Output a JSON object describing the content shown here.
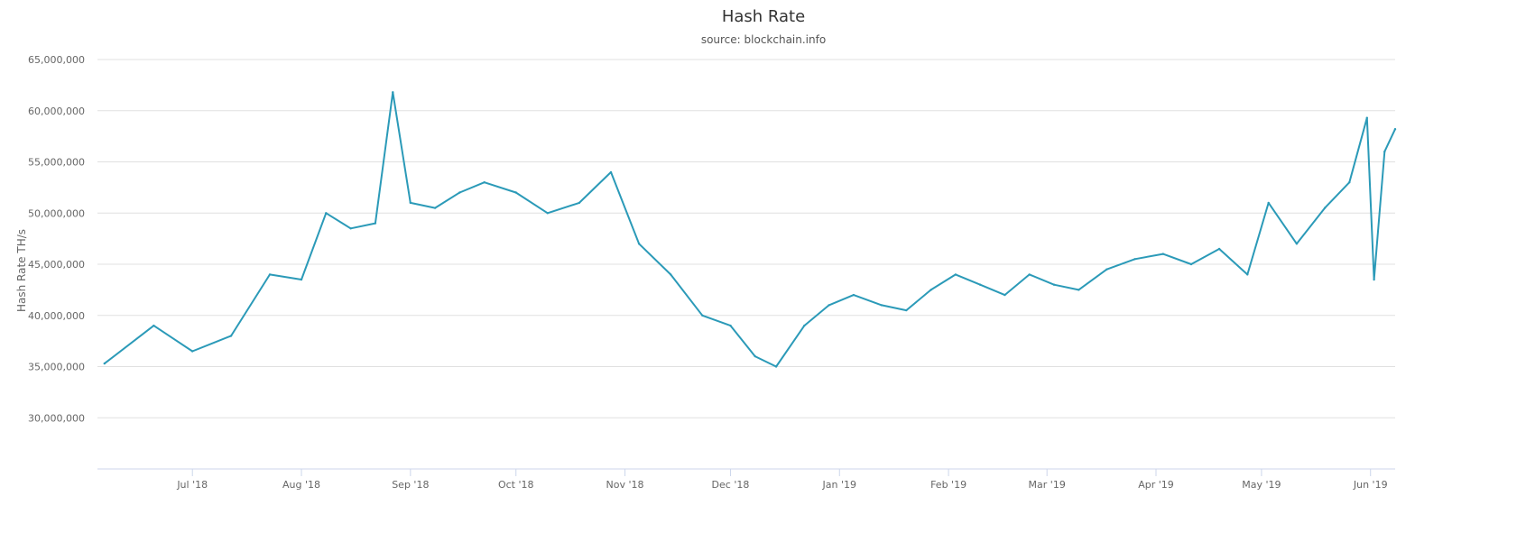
{
  "chart_data": {
    "type": "line",
    "title": "Hash Rate",
    "subtitle": "source: blockchain.info",
    "ylabel": "Hash Rate TH/s",
    "xlabel": "",
    "ylim": [
      25000000,
      65000000
    ],
    "y_ticks": [
      30000000,
      35000000,
      40000000,
      45000000,
      50000000,
      55000000,
      60000000,
      65000000
    ],
    "y_tick_labels": [
      "30,000,000",
      "35,000,000",
      "40,000,000",
      "45,000,000",
      "50,000,000",
      "55,000,000",
      "60,000,000",
      "65,000,000"
    ],
    "x_start": "2018-06-04",
    "x_end": "2019-06-08",
    "x_ticks": [
      "2018-07-01",
      "2018-08-01",
      "2018-09-01",
      "2018-10-01",
      "2018-11-01",
      "2018-12-01",
      "2019-01-01",
      "2019-02-01",
      "2019-03-01",
      "2019-04-01",
      "2019-05-01",
      "2019-06-01"
    ],
    "x_tick_labels": [
      "Jul '18",
      "Aug '18",
      "Sep '18",
      "Oct '18",
      "Nov '18",
      "Dec '18",
      "Jan '19",
      "Feb '19",
      "Mar '19",
      "Apr '19",
      "May '19",
      "Jun '19"
    ],
    "grid": true,
    "legend": "none",
    "line_color": "#2b9ab8",
    "series": [
      {
        "x": [
          "2018-06-06",
          "2018-06-20",
          "2018-07-01",
          "2018-07-12",
          "2018-07-23",
          "2018-08-01",
          "2018-08-08",
          "2018-08-15",
          "2018-08-22",
          "2018-08-27",
          "2018-09-01",
          "2018-09-08",
          "2018-09-15",
          "2018-09-22",
          "2018-10-01",
          "2018-10-10",
          "2018-10-19",
          "2018-10-28",
          "2018-11-05",
          "2018-11-14",
          "2018-11-23",
          "2018-12-01",
          "2018-12-08",
          "2018-12-14",
          "2018-12-22",
          "2018-12-29",
          "2019-01-05",
          "2019-01-13",
          "2019-01-20",
          "2019-01-27",
          "2019-02-03",
          "2019-02-10",
          "2019-02-17",
          "2019-02-24",
          "2019-03-03",
          "2019-03-10",
          "2019-03-18",
          "2019-03-26",
          "2019-04-03",
          "2019-04-11",
          "2019-04-19",
          "2019-04-27",
          "2019-05-03",
          "2019-05-11",
          "2019-05-19",
          "2019-05-26",
          "2019-05-31",
          "2019-06-02",
          "2019-06-05",
          "2019-06-08"
        ],
        "y": [
          35300000,
          39000000,
          36500000,
          38000000,
          44000000,
          43500000,
          50000000,
          48500000,
          49000000,
          61800000,
          51000000,
          50500000,
          52000000,
          53000000,
          52000000,
          50000000,
          51000000,
          54000000,
          47000000,
          44000000,
          40000000,
          39000000,
          36000000,
          35000000,
          39000000,
          41000000,
          42000000,
          41000000,
          40500000,
          42500000,
          44000000,
          43000000,
          42000000,
          44000000,
          43000000,
          42500000,
          44500000,
          45500000,
          46000000,
          45000000,
          46500000,
          44000000,
          51000000,
          47000000,
          50500000,
          53000000,
          59300000,
          43500000,
          56000000,
          58200000
        ]
      }
    ]
  }
}
